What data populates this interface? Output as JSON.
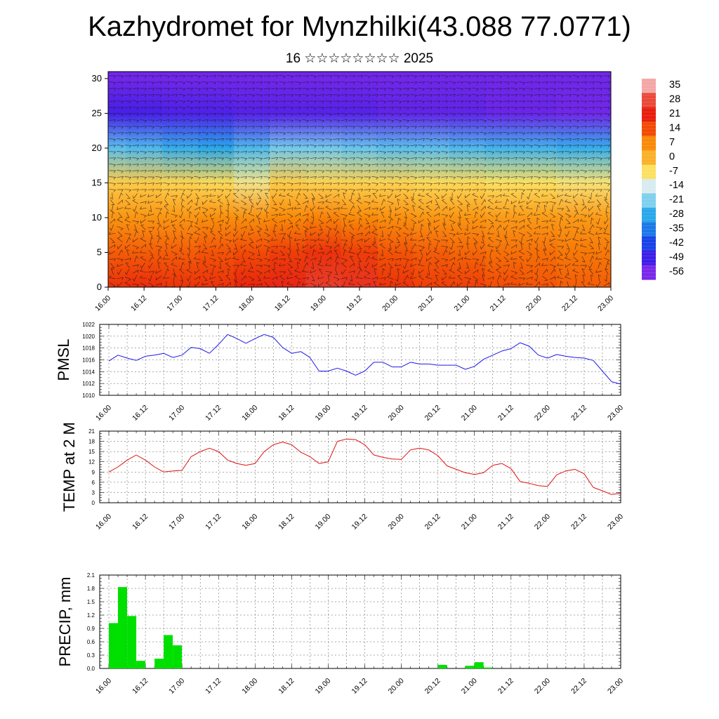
{
  "header": {
    "title": "Kazhydromet for Mynzhilki(43.088 77.0771)",
    "subtitle": "16 ☆☆☆☆☆☆☆☆ 2025"
  },
  "colors": {
    "pressure_line": "#1a1ae6",
    "temperature_line": "#e01010",
    "precip_bar": "#00e000",
    "grid": "#000000"
  },
  "time_ticks": [
    "16.00",
    "16.12",
    "17.00",
    "17.12",
    "18.00",
    "18.12",
    "19.00",
    "19.12",
    "20.00",
    "20.12",
    "21.00",
    "21.12",
    "22.00",
    "22.12",
    "23.00"
  ],
  "chart_data": [
    {
      "type": "heatmap",
      "title": "",
      "xlabel": "",
      "ylabel": "",
      "x_ticks": [
        "16.00",
        "16.12",
        "17.00",
        "17.12",
        "18.00",
        "18.12",
        "19.00",
        "19.12",
        "20.00",
        "20.12",
        "21.00",
        "21.12",
        "22.00",
        "22.12",
        "23.00"
      ],
      "yticks": [
        0,
        5,
        10,
        15,
        20,
        25,
        30
      ],
      "ylim": [
        0,
        31
      ],
      "colorbar": {
        "labels": [
          "35",
          "28",
          "21",
          "14",
          "7",
          "0",
          "-7",
          "-14",
          "-21",
          "-28",
          "-35",
          "-42",
          "-49",
          "-56"
        ],
        "colors": [
          "#f4a7a7",
          "#ea4a3a",
          "#e81e0e",
          "#f24a06",
          "#f98a08",
          "#fbb02a",
          "#fce060",
          "#d8ecf0",
          "#7fd0ee",
          "#2aa8ea",
          "#1c78e8",
          "#1a42e8",
          "#3d1ee8",
          "#7a28ea"
        ]
      },
      "levels": [
        {
          "y": 0,
          "values": [
            18,
            19,
            18,
            18,
            20,
            22,
            26,
            24,
            18,
            16,
            16,
            14,
            13,
            12,
            12
          ]
        },
        {
          "y": 5,
          "values": [
            12,
            12,
            12,
            13,
            14,
            16,
            18,
            16,
            13,
            12,
            11,
            10,
            10,
            9,
            9
          ]
        },
        {
          "y": 10,
          "values": [
            5,
            5,
            5,
            6,
            6,
            7,
            8,
            7,
            6,
            5,
            5,
            4,
            4,
            4,
            4
          ]
        },
        {
          "y": 15,
          "values": [
            -4,
            -4,
            -5,
            -6,
            -9,
            -4,
            -5,
            -5,
            -5,
            -6,
            -6,
            -7,
            -7,
            -8,
            -8
          ]
        },
        {
          "y": 20,
          "values": [
            -24,
            -25,
            -27,
            -28,
            -25,
            -22,
            -22,
            -23,
            -24,
            -24,
            -25,
            -26,
            -26,
            -27,
            -27
          ]
        },
        {
          "y": 25,
          "values": [
            -50,
            -50,
            -51,
            -51,
            -52,
            -52,
            -52,
            -52,
            -53,
            -53,
            -53,
            -54,
            -54,
            -55,
            -55
          ]
        },
        {
          "y": 30,
          "values": [
            -55,
            -55,
            -55,
            -55,
            -55,
            -55,
            -55,
            -55,
            -55,
            -55,
            -55,
            -55,
            -55,
            -55,
            -55
          ]
        }
      ]
    },
    {
      "type": "line",
      "title": "",
      "xlabel": "",
      "ylabel": "PMSL",
      "ylim": [
        1010,
        1022
      ],
      "yticks": [
        "1010",
        "1012",
        "1014",
        "1016",
        "1018",
        "1020",
        "1022"
      ],
      "x_ticks": [
        "16.00",
        "16.12",
        "17.00",
        "17.12",
        "18.00",
        "18.12",
        "19.00",
        "19.12",
        "20.00",
        "20.12",
        "21.00",
        "21.12",
        "22.00",
        "22.12",
        "23.00"
      ],
      "x_hours": [
        0,
        3,
        6,
        9,
        12,
        15,
        18,
        21,
        24,
        27,
        30,
        33,
        36,
        39,
        42,
        45,
        48,
        51,
        54,
        57,
        60,
        63,
        66,
        69,
        72,
        75,
        78,
        81,
        84,
        87,
        90,
        93,
        96,
        99,
        102,
        105,
        108,
        111,
        114,
        117,
        120,
        123,
        126,
        129,
        132,
        135,
        138,
        141,
        144,
        147,
        150,
        153,
        156,
        159,
        162,
        165,
        168
      ],
      "series": [
        {
          "values": [
            1015.8,
            1016.8,
            1016.3,
            1015.9,
            1016.6,
            1016.8,
            1017.1,
            1016.4,
            1016.8,
            1018.1,
            1017.9,
            1017.1,
            1018.6,
            1020.3,
            1019.6,
            1018.8,
            1019.6,
            1020.3,
            1019.8,
            1018.1,
            1017.1,
            1017.4,
            1016.4,
            1014.1,
            1014.1,
            1014.6,
            1014.1,
            1013.4,
            1014.1,
            1015.6,
            1015.6,
            1014.8,
            1014.8,
            1015.6,
            1015.3,
            1015.3,
            1015.1,
            1015.1,
            1015.1,
            1014.4,
            1014.9,
            1016.1,
            1016.8,
            1017.5,
            1017.9,
            1018.9,
            1018.3,
            1016.8,
            1016.3,
            1016.9,
            1016.6,
            1016.4,
            1016.3,
            1015.9,
            1014.1,
            1012.3,
            1011.9
          ]
        }
      ]
    },
    {
      "type": "line",
      "title": "",
      "xlabel": "",
      "ylabel": "TEMP at 2 M",
      "ylim": [
        0,
        21
      ],
      "yticks": [
        "0",
        "3",
        "6",
        "9",
        "12",
        "15",
        "18",
        "21"
      ],
      "x_ticks": [
        "16.00",
        "16.12",
        "17.00",
        "17.12",
        "18.00",
        "18.12",
        "19.00",
        "19.12",
        "20.00",
        "20.12",
        "21.00",
        "21.12",
        "22.00",
        "22.12",
        "23.00"
      ],
      "x_hours": [
        0,
        3,
        6,
        9,
        12,
        15,
        18,
        21,
        24,
        27,
        30,
        33,
        36,
        39,
        42,
        45,
        48,
        51,
        54,
        57,
        60,
        63,
        66,
        69,
        72,
        75,
        78,
        81,
        84,
        87,
        90,
        93,
        96,
        99,
        102,
        105,
        108,
        111,
        114,
        117,
        120,
        123,
        126,
        129,
        132,
        135,
        138,
        141,
        144,
        147,
        150,
        153,
        156,
        159,
        162,
        165,
        168
      ],
      "series": [
        {
          "values": [
            9.0,
            10.5,
            12.5,
            14.0,
            12.5,
            10.5,
            9.0,
            9.3,
            9.5,
            13.5,
            15.0,
            16.0,
            15.0,
            12.5,
            11.5,
            11.0,
            11.5,
            15.0,
            17.0,
            17.8,
            17.0,
            14.8,
            13.5,
            11.5,
            12.0,
            18.0,
            18.7,
            18.5,
            17.0,
            14.0,
            13.3,
            12.8,
            12.7,
            15.5,
            16.0,
            15.5,
            13.8,
            10.8,
            9.8,
            8.8,
            8.3,
            8.8,
            11.0,
            11.5,
            10.0,
            6.2,
            5.7,
            5.0,
            4.8,
            8.2,
            9.3,
            9.8,
            8.5,
            4.5,
            3.5,
            2.4,
            2.8
          ]
        }
      ]
    },
    {
      "type": "bar",
      "title": "",
      "xlabel": "",
      "ylabel": "PRECIP, mm",
      "ylim": [
        0,
        2.1
      ],
      "yticks": [
        "0.0",
        "0.3",
        "0.6",
        "0.9",
        "1.2",
        "1.5",
        "1.8",
        "2.1"
      ],
      "x_ticks": [
        "16.00",
        "16.12",
        "17.00",
        "17.12",
        "18.00",
        "18.12",
        "19.00",
        "19.12",
        "20.00",
        "20.12",
        "21.00",
        "21.12",
        "22.00",
        "22.12",
        "23.00"
      ],
      "x_hours": [
        3,
        6,
        9,
        12,
        18,
        21,
        24,
        111,
        120,
        123,
        126
      ],
      "values": [
        1.02,
        1.83,
        1.18,
        0.17,
        0.22,
        0.75,
        0.52,
        0.08,
        0.06,
        0.14,
        0.02
      ]
    }
  ]
}
